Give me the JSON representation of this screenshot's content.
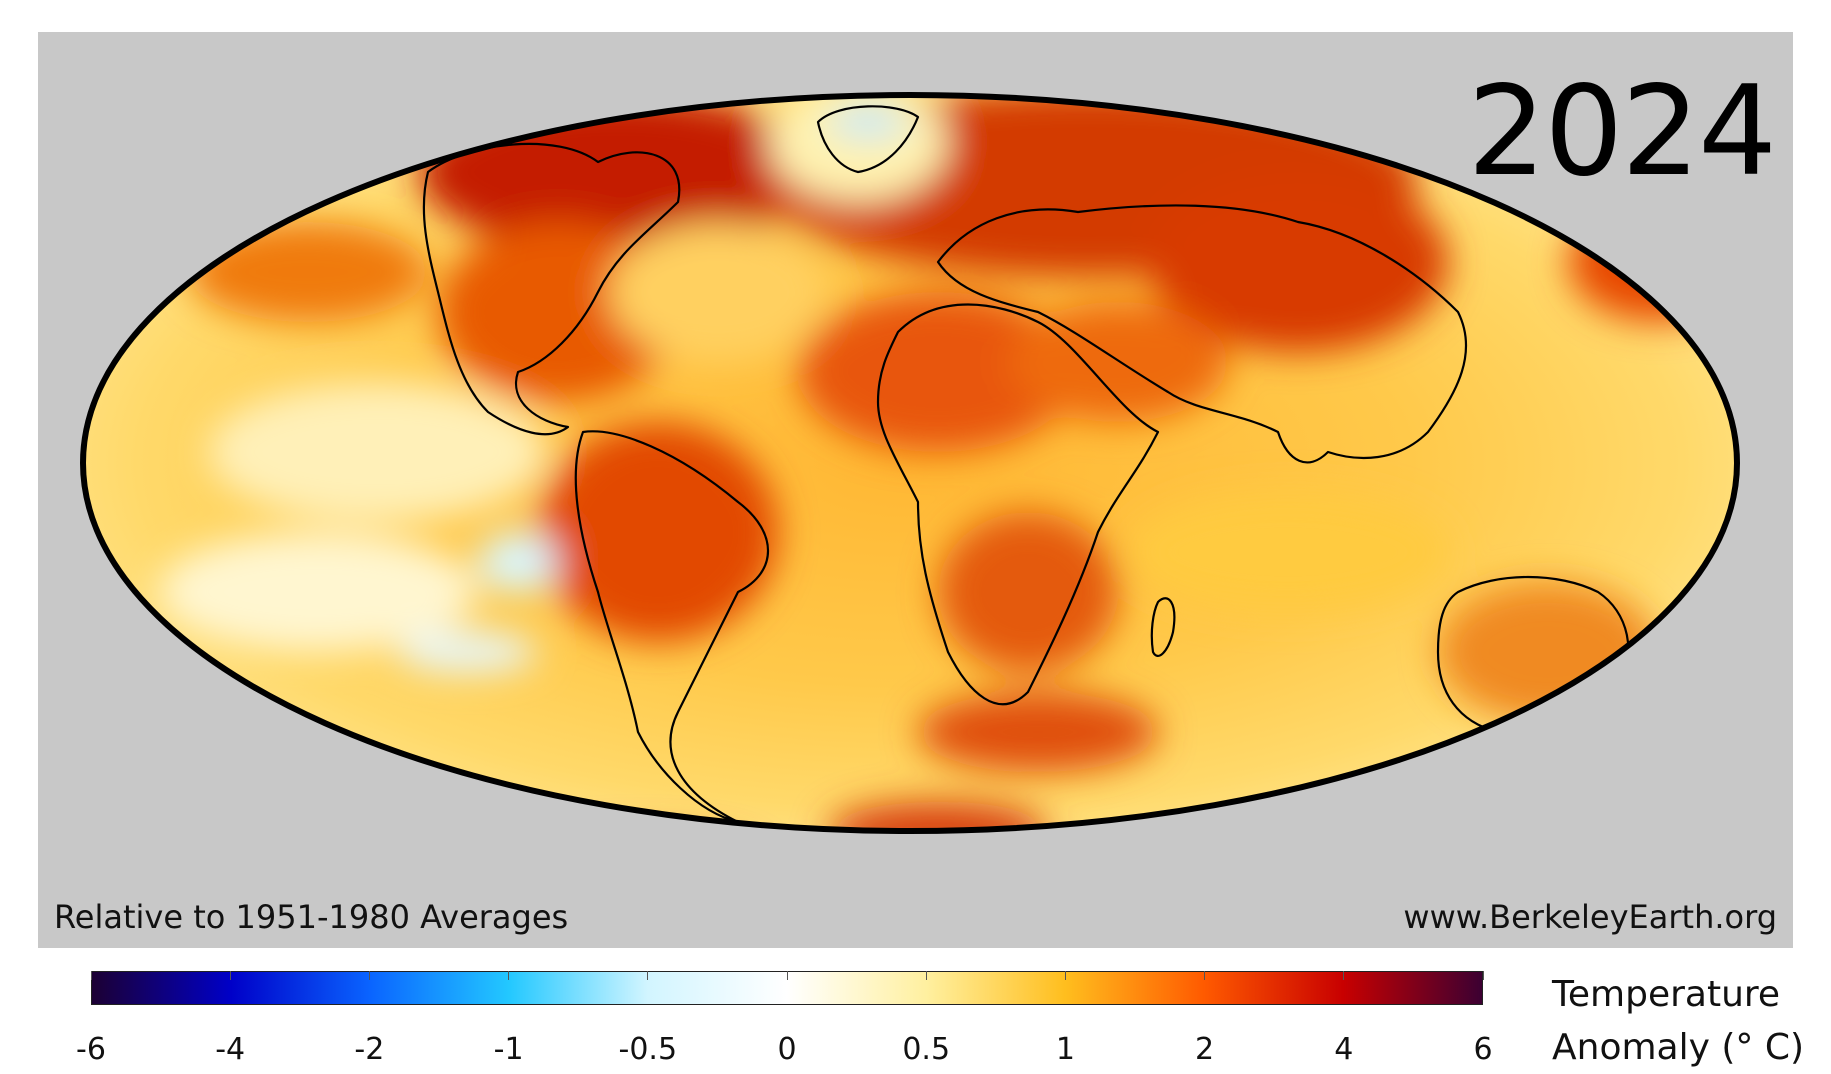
{
  "map": {
    "year": "2024",
    "caption_left": "Relative to 1951-1980 Averages",
    "caption_right": "www.BerkeleyEarth.org",
    "projection": "Mollweide",
    "border_color": "#000000",
    "background_color": "#c8c8c8"
  },
  "colorbar": {
    "title_line1": "Temperature",
    "title_line2": "Anomaly (° C)",
    "ticks": [
      "-6",
      "-4",
      "-2",
      "-1",
      "-0.5",
      "0",
      "0.5",
      "1",
      "2",
      "4",
      "6"
    ],
    "colors": [
      "#1c0033",
      "#0000c8",
      "#0a64ff",
      "#23c8ff",
      "#d2f5ff",
      "#ffffff",
      "#fff0a0",
      "#ffbe1e",
      "#ff5a00",
      "#c80000",
      "#3c0032"
    ]
  }
}
